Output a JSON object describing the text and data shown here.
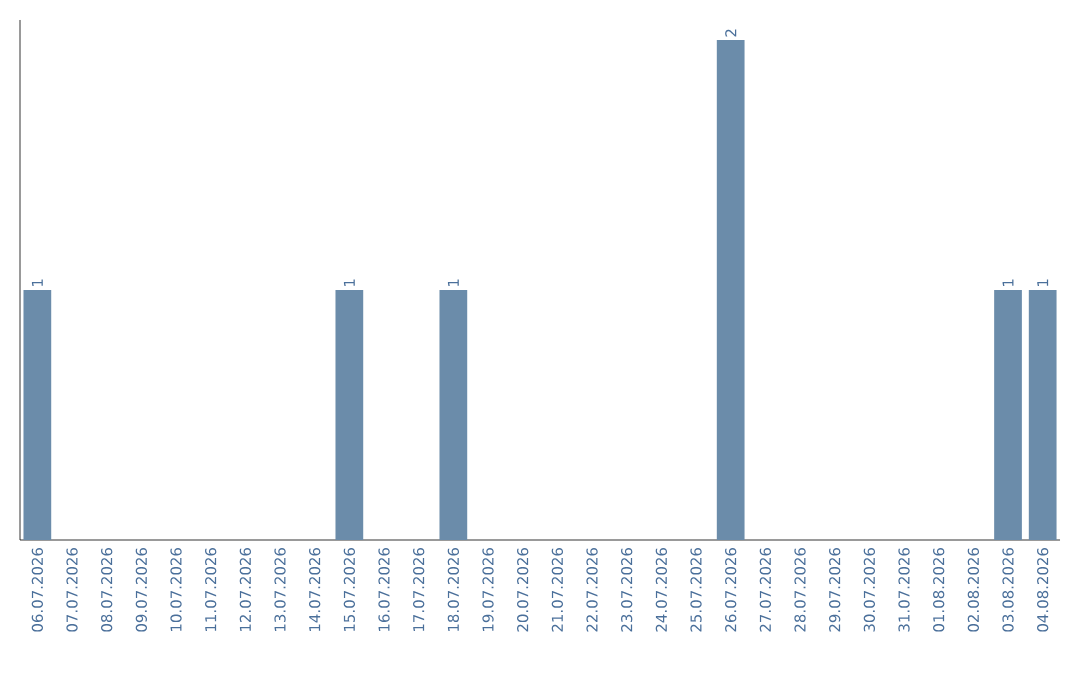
{
  "chart_data": {
    "type": "bar",
    "categories": [
      "06.07.2026",
      "07.07.2026",
      "08.07.2026",
      "09.07.2026",
      "10.07.2026",
      "11.07.2026",
      "12.07.2026",
      "13.07.2026",
      "14.07.2026",
      "15.07.2026",
      "16.07.2026",
      "17.07.2026",
      "18.07.2026",
      "19.07.2026",
      "20.07.2026",
      "21.07.2026",
      "22.07.2026",
      "23.07.2026",
      "24.07.2026",
      "25.07.2026",
      "26.07.2026",
      "27.07.2026",
      "28.07.2026",
      "29.07.2026",
      "30.07.2026",
      "31.07.2026",
      "01.08.2026",
      "02.08.2026",
      "03.08.2026",
      "04.08.2026"
    ],
    "values": [
      1,
      0,
      0,
      0,
      0,
      0,
      0,
      0,
      0,
      1,
      0,
      0,
      1,
      0,
      0,
      0,
      0,
      0,
      0,
      0,
      2,
      0,
      0,
      0,
      0,
      0,
      0,
      0,
      1,
      1
    ],
    "value_labels": [
      "1",
      null,
      null,
      null,
      null,
      null,
      null,
      null,
      null,
      "1",
      null,
      null,
      "1",
      null,
      null,
      null,
      null,
      null,
      null,
      null,
      "2",
      null,
      null,
      null,
      null,
      null,
      null,
      null,
      "1",
      "1"
    ],
    "color": "#6b8caa",
    "tick_labels": "x"
  }
}
